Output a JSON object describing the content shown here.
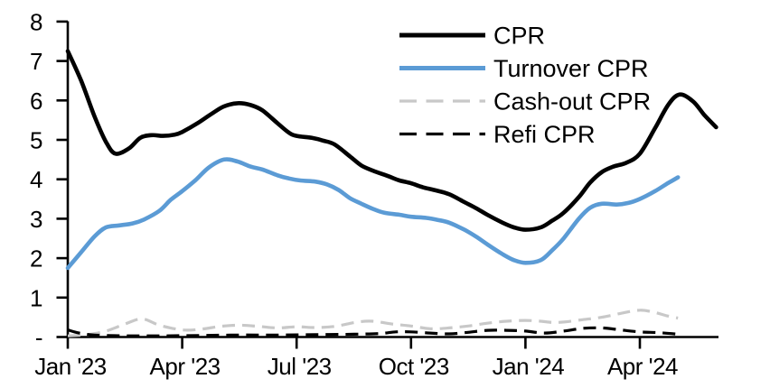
{
  "page": {
    "background": "#ffffff"
  },
  "chart_data": {
    "type": "line",
    "title": "",
    "x_axis": {
      "label": "",
      "tick_labels": [
        "Jan '23",
        "Apr '23",
        "Jul '23",
        "Oct '23",
        "Jan '24",
        "Apr '24"
      ],
      "tick_positions_months": [
        0,
        3,
        6,
        9,
        12,
        15
      ],
      "range_months": [
        0,
        17.1
      ],
      "grid": false
    },
    "y_axis": {
      "label": "",
      "tick_labels": [
        "-",
        "1",
        "2",
        "3",
        "4",
        "5",
        "6",
        "7",
        "8"
      ],
      "tick_values": [
        0,
        1,
        2,
        3,
        4,
        5,
        6,
        7,
        8
      ],
      "range": [
        0,
        8
      ],
      "grid": false
    },
    "legend": {
      "position": "top-right",
      "entries": [
        {
          "label": "CPR",
          "series_id": "cpr"
        },
        {
          "label": "Turnover CPR",
          "series_id": "turnover_cpr"
        },
        {
          "label": "Cash-out CPR",
          "series_id": "cashout_cpr"
        },
        {
          "label": "Refi CPR",
          "series_id": "refi_cpr"
        }
      ]
    },
    "series": [
      {
        "id": "cpr",
        "name": "CPR",
        "color": "#000000",
        "line_style": "solid",
        "stroke_width": 4.6,
        "x_unit": "months_since_jan_2023",
        "points": [
          [
            0,
            7.25
          ],
          [
            0.35,
            6.5
          ],
          [
            0.7,
            5.6
          ],
          [
            1.0,
            4.95
          ],
          [
            1.25,
            4.65
          ],
          [
            1.6,
            4.78
          ],
          [
            1.9,
            5.05
          ],
          [
            2.2,
            5.12
          ],
          [
            2.5,
            5.1
          ],
          [
            2.8,
            5.13
          ],
          [
            3.0,
            5.2
          ],
          [
            3.4,
            5.42
          ],
          [
            3.8,
            5.68
          ],
          [
            4.1,
            5.85
          ],
          [
            4.45,
            5.93
          ],
          [
            4.8,
            5.88
          ],
          [
            5.1,
            5.75
          ],
          [
            5.5,
            5.42
          ],
          [
            5.8,
            5.18
          ],
          [
            6.0,
            5.1
          ],
          [
            6.4,
            5.05
          ],
          [
            6.7,
            4.98
          ],
          [
            7.0,
            4.88
          ],
          [
            7.4,
            4.58
          ],
          [
            7.7,
            4.35
          ],
          [
            8.0,
            4.22
          ],
          [
            8.4,
            4.08
          ],
          [
            8.7,
            3.97
          ],
          [
            9.0,
            3.9
          ],
          [
            9.3,
            3.8
          ],
          [
            9.6,
            3.73
          ],
          [
            10.0,
            3.62
          ],
          [
            10.4,
            3.42
          ],
          [
            10.7,
            3.27
          ],
          [
            11.0,
            3.1
          ],
          [
            11.4,
            2.9
          ],
          [
            11.7,
            2.78
          ],
          [
            12.0,
            2.72
          ],
          [
            12.4,
            2.78
          ],
          [
            12.7,
            2.95
          ],
          [
            13.0,
            3.15
          ],
          [
            13.4,
            3.55
          ],
          [
            13.7,
            3.92
          ],
          [
            14.0,
            4.18
          ],
          [
            14.3,
            4.32
          ],
          [
            14.65,
            4.42
          ],
          [
            15.0,
            4.65
          ],
          [
            15.4,
            5.3
          ],
          [
            15.75,
            5.9
          ],
          [
            16.05,
            6.15
          ],
          [
            16.4,
            5.97
          ],
          [
            16.7,
            5.62
          ],
          [
            17.0,
            5.32
          ]
        ]
      },
      {
        "id": "turnover_cpr",
        "name": "Turnover CPR",
        "color": "#5B9BD5",
        "line_style": "solid",
        "stroke_width": 4.6,
        "x_unit": "months_since_jan_2023",
        "points": [
          [
            0,
            1.75
          ],
          [
            0.35,
            2.15
          ],
          [
            0.7,
            2.55
          ],
          [
            1.0,
            2.78
          ],
          [
            1.35,
            2.83
          ],
          [
            1.7,
            2.88
          ],
          [
            2.0,
            2.98
          ],
          [
            2.4,
            3.2
          ],
          [
            2.7,
            3.48
          ],
          [
            3.0,
            3.7
          ],
          [
            3.35,
            3.98
          ],
          [
            3.7,
            4.3
          ],
          [
            4.1,
            4.5
          ],
          [
            4.45,
            4.45
          ],
          [
            4.8,
            4.32
          ],
          [
            5.1,
            4.25
          ],
          [
            5.5,
            4.1
          ],
          [
            5.8,
            4.02
          ],
          [
            6.1,
            3.97
          ],
          [
            6.5,
            3.94
          ],
          [
            6.8,
            3.87
          ],
          [
            7.1,
            3.73
          ],
          [
            7.4,
            3.52
          ],
          [
            7.7,
            3.38
          ],
          [
            8.0,
            3.25
          ],
          [
            8.3,
            3.15
          ],
          [
            8.7,
            3.1
          ],
          [
            9.0,
            3.05
          ],
          [
            9.4,
            3.02
          ],
          [
            9.7,
            2.97
          ],
          [
            10.0,
            2.9
          ],
          [
            10.4,
            2.72
          ],
          [
            10.7,
            2.55
          ],
          [
            11.0,
            2.35
          ],
          [
            11.4,
            2.1
          ],
          [
            11.7,
            1.95
          ],
          [
            12.0,
            1.88
          ],
          [
            12.4,
            1.95
          ],
          [
            12.7,
            2.2
          ],
          [
            13.0,
            2.5
          ],
          [
            13.4,
            3.0
          ],
          [
            13.7,
            3.28
          ],
          [
            14.0,
            3.38
          ],
          [
            14.4,
            3.36
          ],
          [
            14.7,
            3.4
          ],
          [
            15.0,
            3.5
          ],
          [
            15.4,
            3.7
          ],
          [
            15.7,
            3.88
          ],
          [
            16.0,
            4.05
          ]
        ]
      },
      {
        "id": "cashout_cpr",
        "name": "Cash-out CPR",
        "color": "#C8C8C8",
        "line_style": "dashed",
        "stroke_width": 3.2,
        "x_unit": "months_since_jan_2023",
        "points": [
          [
            0,
            0.03
          ],
          [
            0.5,
            0.06
          ],
          [
            1.0,
            0.15
          ],
          [
            1.5,
            0.33
          ],
          [
            1.95,
            0.46
          ],
          [
            2.4,
            0.3
          ],
          [
            3.0,
            0.18
          ],
          [
            3.5,
            0.2
          ],
          [
            4.0,
            0.27
          ],
          [
            4.5,
            0.3
          ],
          [
            5.0,
            0.27
          ],
          [
            5.5,
            0.23
          ],
          [
            6.0,
            0.26
          ],
          [
            6.5,
            0.24
          ],
          [
            7.0,
            0.27
          ],
          [
            7.6,
            0.38
          ],
          [
            8.0,
            0.4
          ],
          [
            8.5,
            0.33
          ],
          [
            9.0,
            0.28
          ],
          [
            9.5,
            0.21
          ],
          [
            10.0,
            0.23
          ],
          [
            10.5,
            0.28
          ],
          [
            11.0,
            0.35
          ],
          [
            11.5,
            0.4
          ],
          [
            12.0,
            0.42
          ],
          [
            12.4,
            0.4
          ],
          [
            12.7,
            0.37
          ],
          [
            13.0,
            0.38
          ],
          [
            13.5,
            0.44
          ],
          [
            14.0,
            0.5
          ],
          [
            14.5,
            0.6
          ],
          [
            15.0,
            0.68
          ],
          [
            15.4,
            0.62
          ],
          [
            15.7,
            0.54
          ],
          [
            16.0,
            0.48
          ]
        ]
      },
      {
        "id": "refi_cpr",
        "name": "Refi CPR",
        "color": "#000000",
        "line_style": "dashed",
        "stroke_width": 3.2,
        "x_unit": "months_since_jan_2023",
        "points": [
          [
            0,
            0.18
          ],
          [
            0.3,
            0.1
          ],
          [
            0.7,
            0.05
          ],
          [
            1.5,
            0.03
          ],
          [
            2.5,
            0.03
          ],
          [
            3.5,
            0.04
          ],
          [
            4.5,
            0.05
          ],
          [
            5.5,
            0.05
          ],
          [
            6.5,
            0.06
          ],
          [
            7.5,
            0.07
          ],
          [
            8.2,
            0.09
          ],
          [
            8.6,
            0.13
          ],
          [
            9.0,
            0.13
          ],
          [
            9.5,
            0.1
          ],
          [
            10.0,
            0.08
          ],
          [
            10.5,
            0.12
          ],
          [
            11.0,
            0.17
          ],
          [
            11.5,
            0.17
          ],
          [
            12.0,
            0.15
          ],
          [
            12.5,
            0.1
          ],
          [
            13.0,
            0.15
          ],
          [
            13.5,
            0.22
          ],
          [
            14.0,
            0.23
          ],
          [
            14.5,
            0.18
          ],
          [
            15.0,
            0.13
          ],
          [
            15.5,
            0.11
          ],
          [
            16.0,
            0.07
          ]
        ]
      }
    ]
  }
}
